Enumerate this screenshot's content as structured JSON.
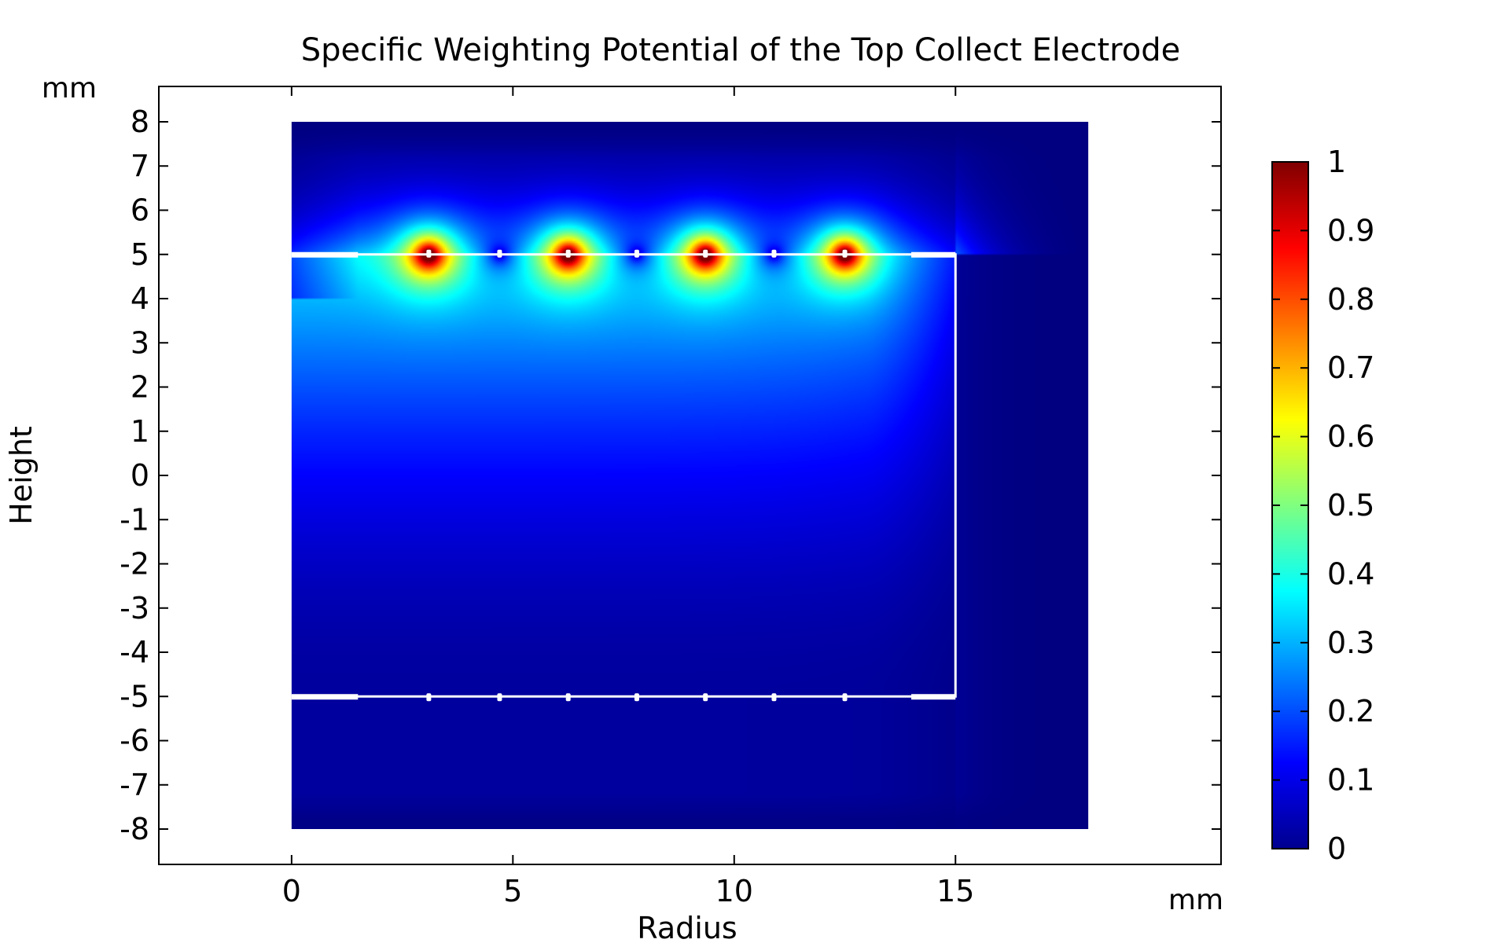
{
  "chart_data": {
    "type": "heatmap",
    "title": "Specific Weighting Potential of the Top Collect Electrode",
    "xlabel": "Radius",
    "ylabel": "Height",
    "x_unit": "mm",
    "y_unit": "mm",
    "xlim": [
      -3,
      21
    ],
    "ylim": [
      -8.8,
      8.8
    ],
    "x_ticks": [
      0,
      5,
      10,
      15
    ],
    "y_ticks": [
      8,
      7,
      6,
      5,
      4,
      3,
      2,
      1,
      0,
      -1,
      -2,
      -3,
      -4,
      -5,
      -6,
      -7,
      -8
    ],
    "domain": {
      "r": [
        0,
        18
      ],
      "z": [
        -8,
        8
      ]
    },
    "detector_outline": {
      "r": [
        0,
        15
      ],
      "z": [
        -5,
        5
      ]
    },
    "collecting_electrodes_r": [
      3.1,
      6.25,
      9.35,
      12.5
    ],
    "grid_electrodes_r": [
      4.7,
      7.8,
      10.9
    ],
    "top_contacts_r": [
      3.1,
      4.7,
      6.25,
      7.8,
      9.35,
      10.9,
      12.5
    ],
    "bottom_contacts_r": [
      3.1,
      4.7,
      6.25,
      7.8,
      9.35,
      10.9,
      12.5
    ],
    "side_pads_r": [
      [
        0,
        1.5
      ],
      [
        14,
        15
      ]
    ],
    "colorbar": {
      "colormap": "jet",
      "range": [
        0,
        1
      ],
      "ticks": [
        "0",
        "0.1",
        "0.2",
        "0.3",
        "0.4",
        "0.5",
        "0.6",
        "0.7",
        "0.8",
        "0.9",
        "1"
      ]
    },
    "grid": false,
    "legend": "colorbar right"
  }
}
